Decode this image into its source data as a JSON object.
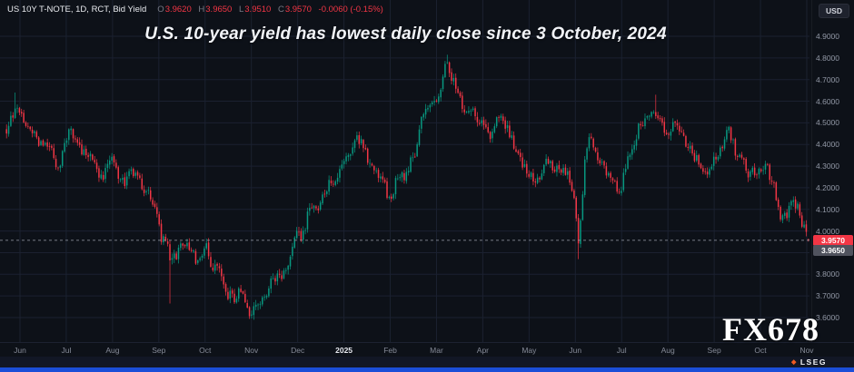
{
  "header": {
    "symbol_line": "US 10Y T-NOTE, 1D, RCT, Bid Yield",
    "ohlc": {
      "o_label": "O",
      "o": "3.9620",
      "h_label": "H",
      "h": "3.9650",
      "l_label": "L",
      "l": "3.9510",
      "c_label": "C",
      "c": "3.9570",
      "change": "-0.0060 (-0.15%)"
    },
    "currency_button": "USD"
  },
  "title": "U.S. 10-year yield has lowest daily close since 3 October, 2024",
  "watermark": "FX678",
  "footer": {
    "brand": "LSEG"
  },
  "axes": {
    "y_ticks": [
      {
        "label": "4.9000",
        "value": 4.9
      },
      {
        "label": "4.8000",
        "value": 4.8
      },
      {
        "label": "4.7000",
        "value": 4.7
      },
      {
        "label": "4.6000",
        "value": 4.6
      },
      {
        "label": "4.5000",
        "value": 4.5
      },
      {
        "label": "4.4000",
        "value": 4.4
      },
      {
        "label": "4.3000",
        "value": 4.3
      },
      {
        "label": "4.2000",
        "value": 4.2
      },
      {
        "label": "4.1000",
        "value": 4.1
      },
      {
        "label": "4.0000",
        "value": 4.0
      },
      {
        "label": "3.8000",
        "value": 3.8
      },
      {
        "label": "3.7000",
        "value": 3.7
      },
      {
        "label": "3.6000",
        "value": 3.6
      }
    ],
    "last_price_label": "3.9570",
    "secondary_price_label": "3.9650",
    "x_ticks": [
      "Jun",
      "Jul",
      "Aug",
      "Sep",
      "Oct",
      "Nov",
      "Dec",
      "2025",
      "Feb",
      "Mar",
      "Apr",
      "May",
      "Jun",
      "Jul",
      "Aug",
      "Sep",
      "Oct",
      "Nov"
    ]
  },
  "colors": {
    "background": "#0d1118",
    "grid": "#1b2130",
    "up": "#089981",
    "down": "#f23645",
    "axis_text": "#9298a6",
    "last_price_line": "#9aa0aa",
    "badge_last_bg": "#f23645",
    "badge_secondary_bg": "#50535e"
  },
  "chart_data": {
    "type": "candlestick",
    "instrument": "US 10Y T-NOTE Bid Yield",
    "timeframe": "1D",
    "x_range": [
      "Jun 2024",
      "Nov 2025"
    ],
    "y_range": [
      3.5,
      4.96
    ],
    "grid_step": 0.1,
    "last_close": 3.957,
    "last_ohlc": [
      3.962,
      3.965,
      3.951,
      3.957
    ],
    "n_candles": 374,
    "noise_seed": 11,
    "noise_amp": 0.06,
    "trend_keyframes": [
      [
        0.0,
        4.45
      ],
      [
        0.012,
        4.58
      ],
      [
        0.03,
        4.46
      ],
      [
        0.048,
        4.4
      ],
      [
        0.065,
        4.3
      ],
      [
        0.08,
        4.46
      ],
      [
        0.098,
        4.39
      ],
      [
        0.115,
        4.28
      ],
      [
        0.13,
        4.33
      ],
      [
        0.146,
        4.21
      ],
      [
        0.16,
        4.27
      ],
      [
        0.176,
        4.16
      ],
      [
        0.19,
        4.05
      ],
      [
        0.205,
        3.86
      ],
      [
        0.216,
        3.97
      ],
      [
        0.23,
        3.89
      ],
      [
        0.245,
        3.93
      ],
      [
        0.262,
        3.83
      ],
      [
        0.276,
        3.73
      ],
      [
        0.29,
        3.67
      ],
      [
        0.302,
        3.64
      ],
      [
        0.316,
        3.71
      ],
      [
        0.33,
        3.76
      ],
      [
        0.345,
        3.8
      ],
      [
        0.36,
        3.97
      ],
      [
        0.376,
        4.06
      ],
      [
        0.392,
        4.11
      ],
      [
        0.406,
        4.24
      ],
      [
        0.42,
        4.31
      ],
      [
        0.436,
        4.44
      ],
      [
        0.45,
        4.38
      ],
      [
        0.464,
        4.25
      ],
      [
        0.476,
        4.19
      ],
      [
        0.49,
        4.27
      ],
      [
        0.506,
        4.35
      ],
      [
        0.52,
        4.54
      ],
      [
        0.536,
        4.63
      ],
      [
        0.55,
        4.78
      ],
      [
        0.562,
        4.66
      ],
      [
        0.576,
        4.58
      ],
      [
        0.59,
        4.52
      ],
      [
        0.604,
        4.5
      ],
      [
        0.616,
        4.55
      ],
      [
        0.63,
        4.43
      ],
      [
        0.645,
        4.29
      ],
      [
        0.66,
        4.24
      ],
      [
        0.676,
        4.31
      ],
      [
        0.69,
        4.28
      ],
      [
        0.705,
        4.23
      ],
      [
        0.713,
        4.01
      ],
      [
        0.721,
        4.34
      ],
      [
        0.729,
        4.45
      ],
      [
        0.74,
        4.33
      ],
      [
        0.754,
        4.25
      ],
      [
        0.766,
        4.2
      ],
      [
        0.78,
        4.42
      ],
      [
        0.794,
        4.5
      ],
      [
        0.81,
        4.55
      ],
      [
        0.824,
        4.46
      ],
      [
        0.84,
        4.47
      ],
      [
        0.856,
        4.38
      ],
      [
        0.87,
        4.27
      ],
      [
        0.885,
        4.34
      ],
      [
        0.9,
        4.45
      ],
      [
        0.914,
        4.36
      ],
      [
        0.926,
        4.27
      ],
      [
        0.936,
        4.24
      ],
      [
        0.946,
        4.31
      ],
      [
        0.956,
        4.21
      ],
      [
        0.966,
        4.05
      ],
      [
        0.976,
        4.14
      ],
      [
        0.986,
        4.11
      ],
      [
        0.993,
        4.03
      ],
      [
        1.0,
        3.957
      ]
    ],
    "spikes": [
      [
        0.012,
        "high",
        4.64
      ],
      [
        0.205,
        "low",
        3.665
      ],
      [
        0.302,
        "low",
        3.6
      ],
      [
        0.55,
        "high",
        4.815
      ],
      [
        0.713,
        "low",
        3.87
      ],
      [
        0.81,
        "high",
        4.63
      ]
    ]
  }
}
